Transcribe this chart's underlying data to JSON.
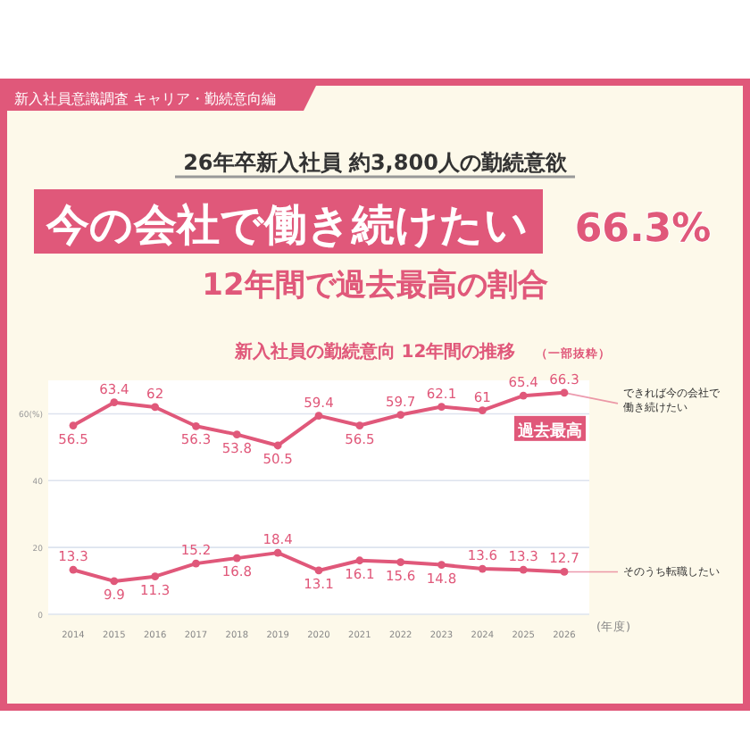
{
  "chart_data": {
    "type": "line",
    "title": "新入社員の勤続意向 12年間の推移",
    "subtitle": "（一部抜粋）",
    "xlabel": "(年度)",
    "categories": [
      "2014",
      "2015",
      "2016",
      "2017",
      "2018",
      "2019",
      "2020",
      "2021",
      "2022",
      "2023",
      "2024",
      "2025",
      "2026"
    ],
    "series": [
      {
        "name": "できれば今の会社で働き続けたい",
        "color": "#e0587a",
        "values": [
          56.5,
          63.4,
          62.0,
          56.3,
          53.8,
          50.5,
          59.4,
          56.5,
          59.7,
          62.1,
          61.0,
          65.4,
          66.3
        ]
      },
      {
        "name": "そのうち転職したい",
        "color": "#e0587a",
        "values": [
          13.3,
          9.9,
          11.3,
          15.2,
          16.8,
          18.4,
          13.1,
          16.1,
          15.6,
          14.8,
          13.6,
          13.3,
          12.7
        ]
      }
    ],
    "ylim": [
      0,
      70
    ],
    "yticks": [
      0,
      20,
      40,
      {
        "value": 60,
        "label": "60(%)"
      }
    ],
    "grid": "y",
    "legend": "right",
    "marker": "circle",
    "data_labels": true,
    "annotations": [
      "新入社員意識調査 キャリア・勤続意向編",
      "26年卒新入社員 約3,800人の勤続意欲",
      "今の会社で働き続けたい",
      "66.3%",
      "12年間で過去最高の割合",
      {
        "text": "過去最高",
        "x": "2026",
        "y": 66.3
      }
    ]
  }
}
